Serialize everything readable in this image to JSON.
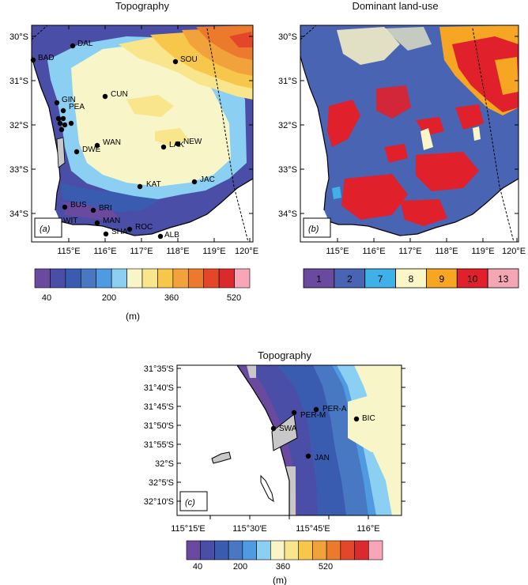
{
  "panel_a": {
    "title": "Topography",
    "tag": "(a)",
    "lat_ticks": [
      "30°S",
      "31°S",
      "32°S",
      "33°S",
      "34°S"
    ],
    "lon_ticks": [
      "115°E",
      "116°E",
      "117°E",
      "118°E",
      "119°E",
      "120°E"
    ],
    "stations": [
      {
        "name": "DAL"
      },
      {
        "name": "BAD"
      },
      {
        "name": "SOU"
      },
      {
        "name": "CUN"
      },
      {
        "name": "GIN"
      },
      {
        "name": "PEA"
      },
      {
        "name": "WAN"
      },
      {
        "name": "DWE"
      },
      {
        "name": "LAK"
      },
      {
        "name": "NEW"
      },
      {
        "name": "KAT"
      },
      {
        "name": "JAC"
      },
      {
        "name": "BUS"
      },
      {
        "name": "BRI"
      },
      {
        "name": "WIT"
      },
      {
        "name": "MAN"
      },
      {
        "name": "SHA"
      },
      {
        "name": "ROC"
      },
      {
        "name": "ALB"
      }
    ],
    "colorbar": {
      "colors": [
        "#6a4a9e",
        "#4a4ea6",
        "#3a5cb0",
        "#4878c2",
        "#4f9ae0",
        "#8bd0f2",
        "#f8f6c8",
        "#f9e58c",
        "#f6c74a",
        "#f2a23a",
        "#ec7a2c",
        "#e4462a",
        "#d92a2e",
        "#f6a6b6"
      ],
      "labels": [
        "40",
        "200",
        "360",
        "520"
      ],
      "unit": "(m)"
    }
  },
  "panel_b": {
    "title": "Dominant land-use",
    "tag": "(b)",
    "lat_ticks": [
      "30°S",
      "31°S",
      "32°S",
      "33°S",
      "34°S"
    ],
    "lon_ticks": [
      "115°E",
      "116°E",
      "117°E",
      "118°E",
      "119°E",
      "120°E"
    ],
    "legend": [
      {
        "label": "1",
        "color": "#6a4a9e"
      },
      {
        "label": "2",
        "color": "#4a64b4"
      },
      {
        "label": "7",
        "color": "#3fb0e8"
      },
      {
        "label": "8",
        "color": "#fbf6c8"
      },
      {
        "label": "9",
        "color": "#f6a623"
      },
      {
        "label": "10",
        "color": "#e0202a"
      },
      {
        "label": "13",
        "color": "#f4a7b2"
      }
    ]
  },
  "panel_c": {
    "title": "Topography",
    "tag": "(c)",
    "lat_ticks": [
      "31°35′S",
      "31°40′S",
      "31°45′S",
      "31°50′S",
      "31°55′S",
      "32°S",
      "32°5′S",
      "32°10′S"
    ],
    "lon_ticks": [
      "115°15′E",
      "115°30′E",
      "115°45′E",
      "116°E"
    ],
    "stations": [
      {
        "name": "PER-A"
      },
      {
        "name": "PER-M"
      },
      {
        "name": "BIC"
      },
      {
        "name": "SWA"
      },
      {
        "name": "JAN"
      }
    ],
    "colorbar": {
      "colors": [
        "#6a4a9e",
        "#4a4ea6",
        "#3a5cb0",
        "#4878c2",
        "#4f9ae0",
        "#8bd0f2",
        "#f8f6c8",
        "#f9e58c",
        "#f6c74a",
        "#f2a23a",
        "#ec7a2c",
        "#e4462a",
        "#d92a2e",
        "#f6a6b6"
      ],
      "labels": [
        "40",
        "200",
        "360",
        "520"
      ],
      "unit": "(m)"
    }
  }
}
